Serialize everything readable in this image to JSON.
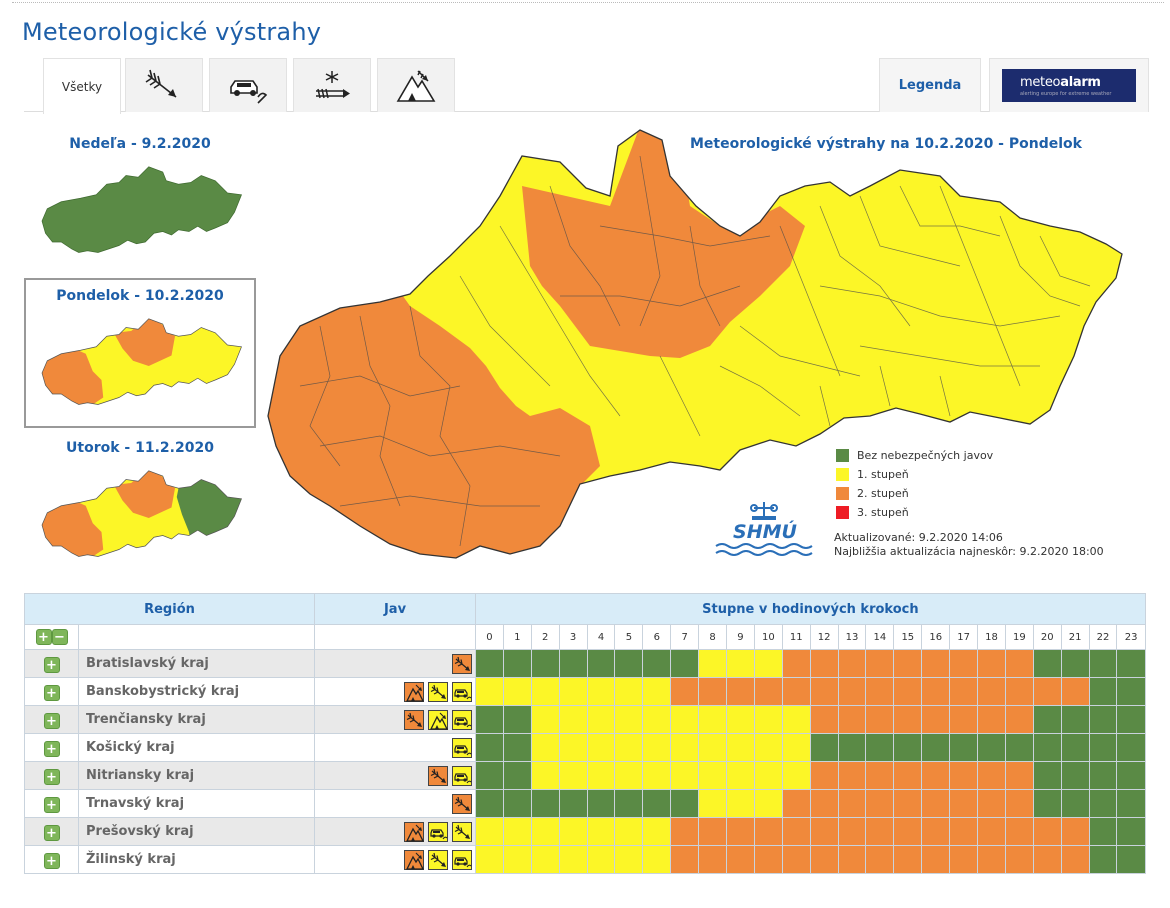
{
  "page": {
    "title": "Meteorologické výstrahy"
  },
  "tabs": {
    "all_label": "Všetky",
    "icons": [
      "wind-icon",
      "road-icon",
      "snow-wind-icon",
      "storm-icon"
    ],
    "legend_label": "Legenda",
    "meteoalarm": {
      "name_light": "meteo",
      "name_bold": "alarm",
      "tagline": "alerting europe for extreme weather"
    }
  },
  "days": [
    {
      "title": "Nedeľa - 9.2.2020",
      "selected": false
    },
    {
      "title": "Pondelok - 10.2.2020",
      "selected": true
    },
    {
      "title": "Utorok - 11.2.2020",
      "selected": false
    }
  ],
  "map": {
    "title": "Meteorologické výstrahy na 10.2.2020 - Pondelok"
  },
  "legend": {
    "items": [
      {
        "label": "Bez nebezpečných javov",
        "color": "#5a8a45"
      },
      {
        "label": "1. stupeň",
        "color": "#fcf627"
      },
      {
        "label": "2. stupeň",
        "color": "#f0893b"
      },
      {
        "label": "3. stupeň",
        "color": "#ee1c24"
      }
    ]
  },
  "logo": {
    "text": "SHMÚ"
  },
  "update": {
    "updated": "Aktualizované: 9.2.2020 14:06",
    "next": "Najbližšia aktualizácia najneskôr: 9.2.2020 18:00"
  },
  "table": {
    "region_header": "Región",
    "jav_header": "Jav",
    "steps_header": "Stupne v hodinových krokoch",
    "hours": [
      "0",
      "1",
      "2",
      "3",
      "4",
      "5",
      "6",
      "7",
      "8",
      "9",
      "10",
      "11",
      "12",
      "13",
      "14",
      "15",
      "16",
      "17",
      "18",
      "19",
      "20",
      "21",
      "22",
      "23"
    ],
    "colors": {
      "0": "#5a8a45",
      "1": "#fcf627",
      "2": "#f0893b",
      "3": "#ee1c24"
    },
    "rows": [
      {
        "name": "Bratislavský kraj",
        "icons": [
          {
            "type": "wind",
            "level": 2
          }
        ],
        "levels": [
          0,
          0,
          0,
          0,
          0,
          0,
          0,
          0,
          1,
          1,
          1,
          2,
          2,
          2,
          2,
          2,
          2,
          2,
          2,
          2,
          0,
          0,
          0,
          0
        ]
      },
      {
        "name": "Banskobystrický kraj",
        "icons": [
          {
            "type": "storm",
            "level": 2
          },
          {
            "type": "wind",
            "level": 1
          },
          {
            "type": "road",
            "level": 1
          }
        ],
        "levels": [
          1,
          1,
          1,
          1,
          1,
          1,
          1,
          2,
          2,
          2,
          2,
          2,
          2,
          2,
          2,
          2,
          2,
          2,
          2,
          2,
          2,
          2,
          0,
          0
        ]
      },
      {
        "name": "Trenčiansky kraj",
        "icons": [
          {
            "type": "wind",
            "level": 2
          },
          {
            "type": "storm",
            "level": 1
          },
          {
            "type": "road",
            "level": 1
          }
        ],
        "levels": [
          0,
          0,
          1,
          1,
          1,
          1,
          1,
          1,
          1,
          1,
          1,
          1,
          2,
          2,
          2,
          2,
          2,
          2,
          2,
          2,
          0,
          0,
          0,
          0
        ]
      },
      {
        "name": "Košický kraj",
        "icons": [
          {
            "type": "road",
            "level": 1
          }
        ],
        "levels": [
          0,
          0,
          1,
          1,
          1,
          1,
          1,
          1,
          1,
          1,
          1,
          1,
          0,
          0,
          0,
          0,
          0,
          0,
          0,
          0,
          0,
          0,
          0,
          0
        ]
      },
      {
        "name": "Nitriansky kraj",
        "icons": [
          {
            "type": "wind",
            "level": 2
          },
          {
            "type": "road",
            "level": 1
          }
        ],
        "levels": [
          0,
          0,
          1,
          1,
          1,
          1,
          1,
          1,
          1,
          1,
          1,
          1,
          2,
          2,
          2,
          2,
          2,
          2,
          2,
          2,
          0,
          0,
          0,
          0
        ]
      },
      {
        "name": "Trnavský kraj",
        "icons": [
          {
            "type": "wind",
            "level": 2
          }
        ],
        "levels": [
          0,
          0,
          0,
          0,
          0,
          0,
          0,
          0,
          1,
          1,
          1,
          2,
          2,
          2,
          2,
          2,
          2,
          2,
          2,
          2,
          0,
          0,
          0,
          0
        ]
      },
      {
        "name": "Prešovský kraj",
        "icons": [
          {
            "type": "storm",
            "level": 2
          },
          {
            "type": "road",
            "level": 1
          },
          {
            "type": "wind",
            "level": 1
          }
        ],
        "levels": [
          1,
          1,
          1,
          1,
          1,
          1,
          1,
          2,
          2,
          2,
          2,
          2,
          2,
          2,
          2,
          2,
          2,
          2,
          2,
          2,
          2,
          2,
          0,
          0
        ]
      },
      {
        "name": "Žilinský kraj",
        "icons": [
          {
            "type": "storm",
            "level": 2
          },
          {
            "type": "wind",
            "level": 1
          },
          {
            "type": "road",
            "level": 1
          }
        ],
        "levels": [
          1,
          1,
          1,
          1,
          1,
          1,
          1,
          2,
          2,
          2,
          2,
          2,
          2,
          2,
          2,
          2,
          2,
          2,
          2,
          2,
          2,
          2,
          0,
          0
        ]
      }
    ]
  }
}
